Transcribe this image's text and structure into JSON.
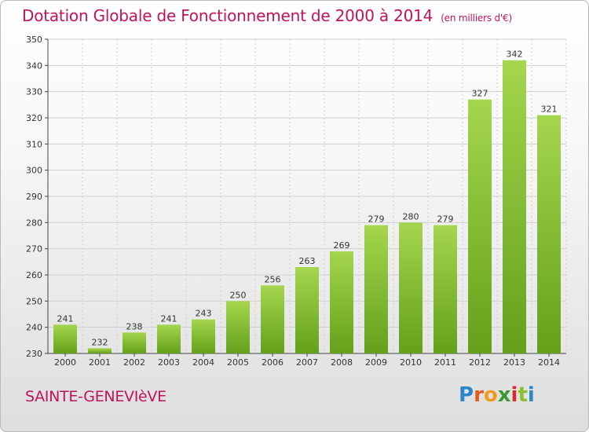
{
  "header": {
    "title": "Dotation Globale de Fonctionnement de 2000 à 2014",
    "unit": "(en milliers d'€)"
  },
  "footer": {
    "commune": "SAINTE-GENEVIèVE",
    "logo_letters": [
      "P",
      "r",
      "o",
      "x",
      "i",
      "t",
      "i"
    ],
    "logo_colors": [
      "#2a86c8",
      "#e45a1c",
      "#f29b1b",
      "#3a9a2f",
      "#d92b2b",
      "#8fbe2b",
      "#2a86c8"
    ]
  },
  "colors": {
    "bar_light": "#a4d64e",
    "bar_dark": "#64a01a",
    "grid": "#d0d0d0"
  },
  "chart_data": {
    "type": "bar",
    "categories": [
      "2000",
      "2001",
      "2002",
      "2003",
      "2004",
      "2005",
      "2006",
      "2007",
      "2008",
      "2009",
      "2010",
      "2011",
      "2012",
      "2013",
      "2014"
    ],
    "values": [
      241,
      232,
      238,
      241,
      243,
      250,
      256,
      263,
      269,
      279,
      280,
      279,
      327,
      342,
      321
    ],
    "title": "Dotation Globale de Fonctionnement de 2000 à 2014",
    "ylim": [
      230,
      350
    ],
    "yticks": [
      230,
      240,
      250,
      260,
      270,
      280,
      290,
      300,
      310,
      320,
      330,
      340,
      350
    ],
    "grid": true
  }
}
